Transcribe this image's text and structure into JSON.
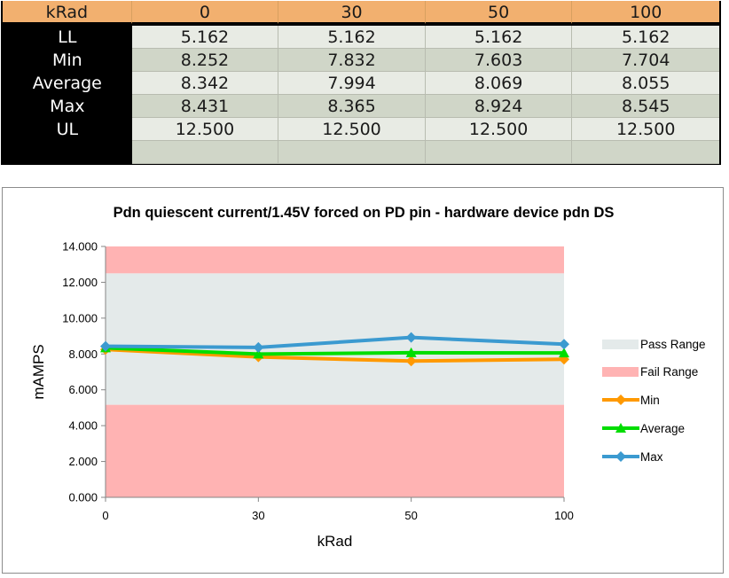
{
  "table": {
    "header": {
      "label": "kRad",
      "cols": [
        "0",
        "30",
        "50",
        "100"
      ]
    },
    "rows": [
      {
        "label": "LL",
        "values": [
          "5.162",
          "5.162",
          "5.162",
          "5.162"
        ]
      },
      {
        "label": "Min",
        "values": [
          "8.252",
          "7.832",
          "7.603",
          "7.704"
        ]
      },
      {
        "label": "Average",
        "values": [
          "8.342",
          "7.994",
          "8.069",
          "8.055"
        ]
      },
      {
        "label": "Max",
        "values": [
          "8.431",
          "8.365",
          "8.924",
          "8.545"
        ]
      },
      {
        "label": "UL",
        "values": [
          "12.500",
          "12.500",
          "12.500",
          "12.500"
        ]
      },
      {
        "label": "",
        "values": [
          "",
          "",
          "",
          ""
        ]
      }
    ]
  },
  "chart_data": {
    "type": "line",
    "title": "Pdn quiescent current/1.45V forced on PD pin - hardware device pdn DS",
    "xlabel": "kRad",
    "ylabel": "mAMPS",
    "categories": [
      "0",
      "30",
      "50",
      "100"
    ],
    "ylim": [
      0,
      14
    ],
    "yticks": [
      "0.000",
      "2.000",
      "4.000",
      "6.000",
      "8.000",
      "10.000",
      "12.000",
      "14.000"
    ],
    "grid": false,
    "legend_position": "right",
    "bands": [
      {
        "name": "Pass Range",
        "from": 5.162,
        "to": 12.5,
        "color": "#e4eaea"
      },
      {
        "name": "Fail Range",
        "from": 0,
        "to": 5.162,
        "color": "#ffb3b3"
      },
      {
        "name": "Fail Range",
        "from": 12.5,
        "to": 14,
        "color": "#ffb3b3"
      }
    ],
    "series": [
      {
        "name": "Min",
        "values": [
          8.252,
          7.832,
          7.603,
          7.704
        ],
        "color": "#ff9900",
        "marker": "diamond"
      },
      {
        "name": "Average",
        "values": [
          8.342,
          7.994,
          8.069,
          8.055
        ],
        "color": "#00dd00",
        "marker": "triangle"
      },
      {
        "name": "Max",
        "values": [
          8.431,
          8.365,
          8.924,
          8.545
        ],
        "color": "#3b9ad0",
        "marker": "diamond"
      }
    ],
    "legend": [
      "Pass Range",
      "Fail Range",
      "Min",
      "Average",
      "Max"
    ]
  }
}
